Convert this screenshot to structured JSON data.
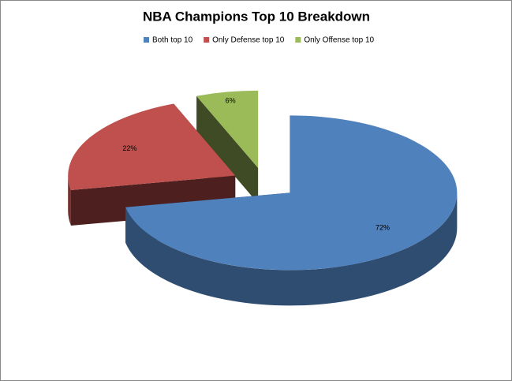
{
  "chart_data": {
    "type": "pie3d",
    "title": "NBA Champions Top 10 Breakdown",
    "series": [
      {
        "name": "Both top 10",
        "color": "#4f81bd",
        "values": [
          72
        ],
        "value_labels": [
          "72%"
        ]
      },
      {
        "name": "Only Defense top 10",
        "color": "#c0504d",
        "values": [
          22
        ],
        "value_labels": [
          "22%"
        ]
      },
      {
        "name": "Only Offense top 10",
        "color": "#9bbb59",
        "values": [
          6
        ],
        "value_labels": [
          "6%"
        ]
      }
    ],
    "legend": "top"
  }
}
